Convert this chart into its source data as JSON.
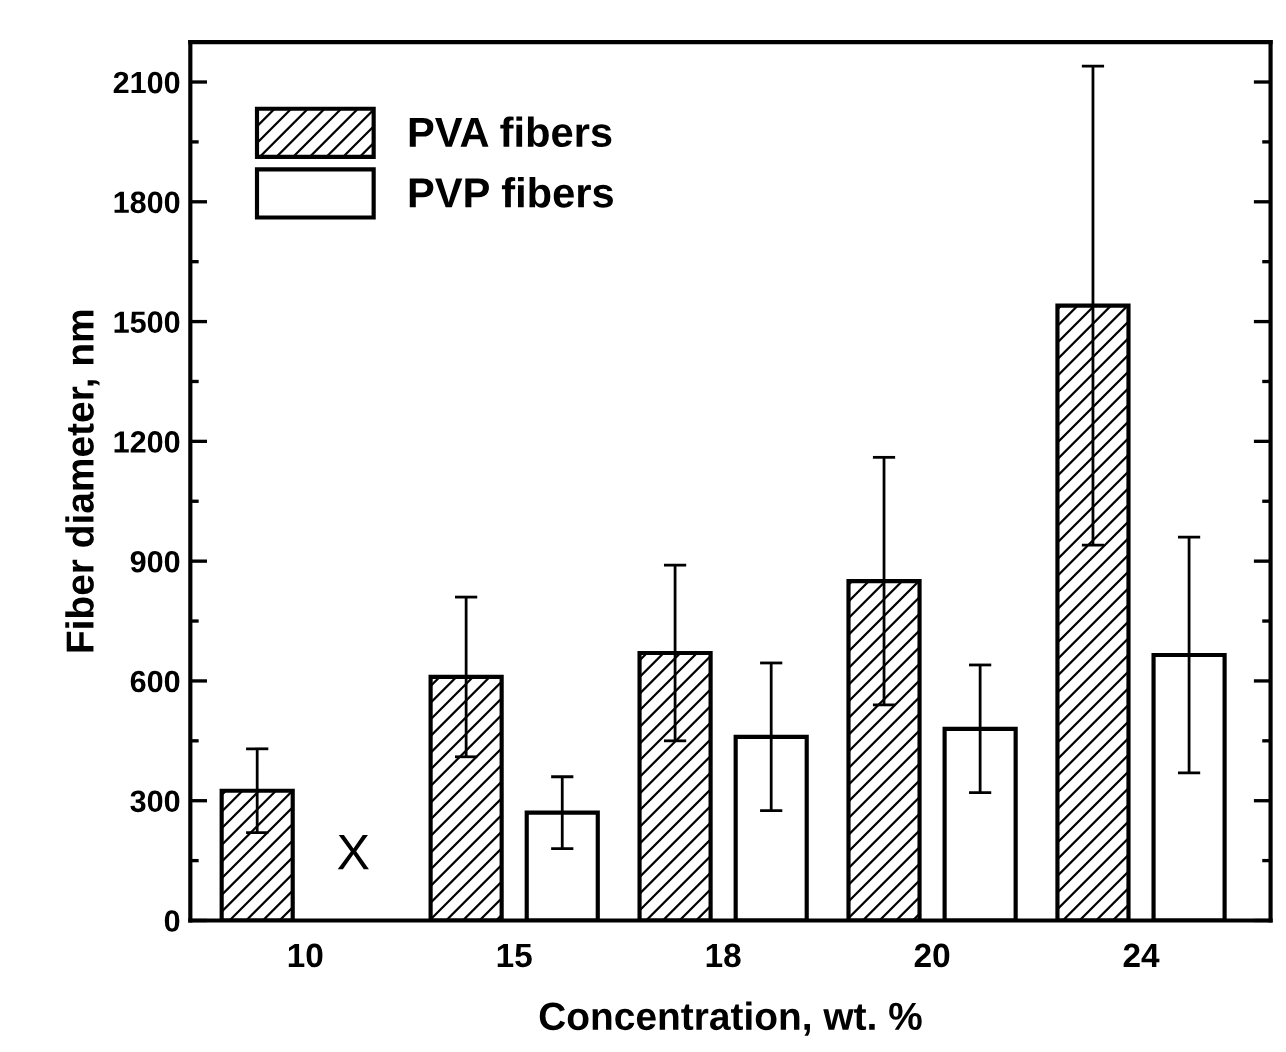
{
  "chart_data": {
    "type": "bar",
    "xlabel": "Concentration, wt. %",
    "ylabel": "Fiber diameter, nm",
    "categories": [
      "10",
      "15",
      "18",
      "20",
      "24"
    ],
    "series": [
      {
        "name": "PVA fibers",
        "color": "#000000",
        "values": [
          325,
          610,
          670,
          850,
          1540
        ],
        "errors": [
          105,
          200,
          220,
          310,
          600
        ]
      },
      {
        "name": "PVP fibers",
        "color": "#ffffff",
        "values": [
          null,
          270,
          460,
          480,
          665
        ],
        "errors": [
          null,
          90,
          185,
          160,
          295
        ]
      }
    ],
    "ylim": [
      0,
      2200
    ],
    "yticks": [
      0,
      300,
      600,
      900,
      1200,
      1500,
      1800,
      2100
    ],
    "annotations": [
      "X"
    ],
    "grid": false,
    "legend": "top left"
  }
}
